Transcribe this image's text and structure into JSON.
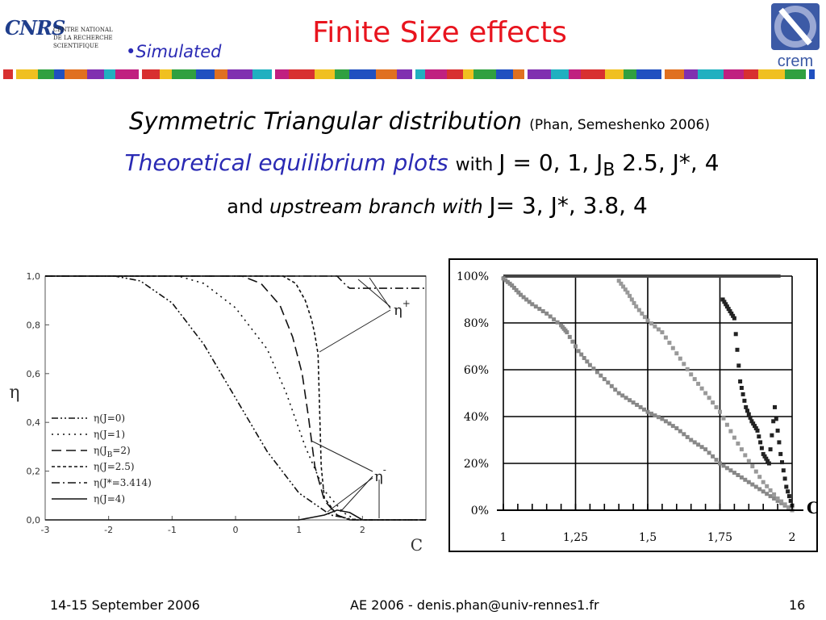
{
  "header": {
    "cnrs_mark": "CNRS",
    "cnrs_text": [
      "CENTRE NATIONAL",
      "DE LA RECHERCHE",
      "SCIENTIFIQUE"
    ],
    "simulated": "•Simulated",
    "title": "Finite Size effects",
    "crem_label": "crem"
  },
  "headline": {
    "line1_main": "Symmetric Triangular distribution ",
    "line1_cite": "(Phan, Semeshenko 2006)",
    "line2_blue": "Theoretical equilibrium plots ",
    "line2_with": " with ",
    "line2_values_a": "J = 0, 1, J",
    "line2_sub": "B",
    "line2_values_b": " 2.5, J*, 4",
    "line3_and": "and ",
    "line3_it": "upstream branch with ",
    "line3_values": "J= 3, J*, 3.8, 4"
  },
  "colors": {
    "title": "#e8141e",
    "accent_blue": "#2a2ab4",
    "crem_blue": "#3c5aa6",
    "crem_ring": "#9aa8d4"
  },
  "chart_data": [
    {
      "type": "line",
      "xlabel": "C",
      "ylabel": "η",
      "xlim": [
        -3,
        3
      ],
      "ylim": [
        0,
        1
      ],
      "x_ticks": [
        "-3",
        "-2",
        "-1",
        "0",
        "1",
        "2"
      ],
      "y_ticks": [
        "0,0",
        "0,2",
        "0,4",
        "0,6",
        "0,8",
        "1,0"
      ],
      "legend": [
        "η(J=0)",
        "η(J=1)",
        "η(J_B=2)",
        "η(J=2.5)",
        "η(J*=3.414)",
        "η(J=4)"
      ],
      "legend_parts": [
        {
          "pre": "η(J",
          "sub": "",
          "post": "=0)"
        },
        {
          "pre": "η(J",
          "sub": "",
          "post": "=1)"
        },
        {
          "pre": "η(J",
          "sub": "B",
          "post": "=2)"
        },
        {
          "pre": "η(J",
          "sub": "",
          "post": "=2.5)"
        },
        {
          "pre": "η(J*",
          "sub": "",
          "post": "=3.414)"
        },
        {
          "pre": "η(J",
          "sub": "",
          "post": "=4)"
        }
      ],
      "annotations": [
        {
          "symbol": "η",
          "sup": "+"
        },
        {
          "symbol": "η",
          "sup": "-"
        }
      ],
      "series": [
        {
          "name": "η(J=0)",
          "x": [
            -3,
            -1.9,
            -1.5,
            -1.0,
            -0.5,
            0,
            0.5,
            1.0,
            1.5,
            1.9,
            3
          ],
          "y": [
            1,
            1,
            0.98,
            0.89,
            0.72,
            0.5,
            0.28,
            0.11,
            0.02,
            0,
            0
          ]
        },
        {
          "name": "η(J=1)",
          "x": [
            -3,
            -0.9,
            -0.5,
            0,
            0.5,
            0.8,
            1.1,
            1.4,
            1.7,
            1.9,
            3
          ],
          "y": [
            1,
            1,
            0.97,
            0.87,
            0.7,
            0.52,
            0.3,
            0.12,
            0.03,
            0,
            0
          ]
        },
        {
          "name": "η(J_B=2)",
          "x": [
            -3,
            0.1,
            0.4,
            0.7,
            0.9,
            1.05,
            1.15,
            1.25,
            1.4,
            1.6,
            1.8,
            3
          ],
          "y": [
            1,
            1,
            0.97,
            0.88,
            0.75,
            0.6,
            0.42,
            0.22,
            0.08,
            0.02,
            0,
            0
          ]
        },
        {
          "name": "η(J=2.5)",
          "x": [
            -3,
            0.75,
            0.95,
            1.1,
            1.2,
            1.25,
            1.3,
            1.35,
            1.4,
            1.6,
            1.8,
            3
          ],
          "y": [
            1,
            1,
            0.97,
            0.9,
            0.82,
            0.76,
            0.68,
            0.22,
            0.09,
            0.02,
            0,
            0
          ]
        },
        {
          "name": "η(J*=3.414)",
          "x": [
            -3,
            1.6,
            1.75,
            1.8,
            3
          ],
          "y": [
            1,
            1,
            0.96,
            0.95,
            0.95
          ]
        },
        {
          "name": "η(J=4)",
          "x": [
            -3,
            3
          ],
          "y": [
            1,
            1
          ]
        }
      ],
      "lower_branches_upstream": [
        {
          "x": [
            -3,
            1.0,
            1.2,
            1.4,
            1.6,
            1.8,
            2.0,
            3
          ],
          "y": [
            0,
            0,
            0.01,
            0.02,
            0.04,
            0.03,
            0,
            0
          ]
        }
      ]
    },
    {
      "type": "scatter",
      "xlabel": "C",
      "ylabel": "",
      "xlim": [
        1,
        2
      ],
      "ylim": [
        0,
        1
      ],
      "x_ticks": [
        "1",
        "1,25",
        "1,5",
        "1,75",
        "2"
      ],
      "y_ticks": [
        "0%",
        "20%",
        "40%",
        "60%",
        "80%",
        "100%"
      ],
      "grid": true,
      "series": [
        {
          "x": [
            1.0,
            1.03,
            1.06,
            1.1,
            1.15,
            1.2,
            1.22,
            1.26,
            1.3,
            1.35,
            1.4,
            1.45,
            1.5,
            1.55,
            1.6,
            1.65,
            1.7,
            1.75,
            1.8,
            1.85,
            1.9,
            1.95,
            2.0
          ],
          "y": [
            0.99,
            0.96,
            0.92,
            0.88,
            0.84,
            0.79,
            0.76,
            0.68,
            0.62,
            0.56,
            0.5,
            0.46,
            0.42,
            0.39,
            0.35,
            0.3,
            0.26,
            0.2,
            0.16,
            0.12,
            0.08,
            0.04,
            0.0
          ]
        },
        {
          "x": [
            1.4,
            1.43,
            1.46,
            1.5,
            1.55,
            1.6,
            1.65,
            1.7,
            1.75,
            1.8,
            1.85,
            1.9,
            1.95,
            2.0
          ],
          "y": [
            0.98,
            0.93,
            0.87,
            0.81,
            0.76,
            0.67,
            0.58,
            0.5,
            0.42,
            0.31,
            0.21,
            0.12,
            0.05,
            0.0
          ]
        },
        {
          "x": [
            1.76,
            1.78,
            1.8,
            1.82,
            1.84,
            1.86,
            1.88,
            1.9,
            1.92,
            1.94,
            1.96,
            1.98,
            2.0
          ],
          "y": [
            0.9,
            0.86,
            0.82,
            0.55,
            0.44,
            0.38,
            0.34,
            0.24,
            0.2,
            0.44,
            0.24,
            0.1,
            0.02
          ]
        }
      ],
      "top_band": {
        "x": [
          1.0,
          1.96
        ],
        "y": 1.0
      }
    }
  ],
  "footer": {
    "date": "14-15 September 2006",
    "center": "AE 2006 - denis.phan@univ-rennes1.fr",
    "page": "16"
  }
}
